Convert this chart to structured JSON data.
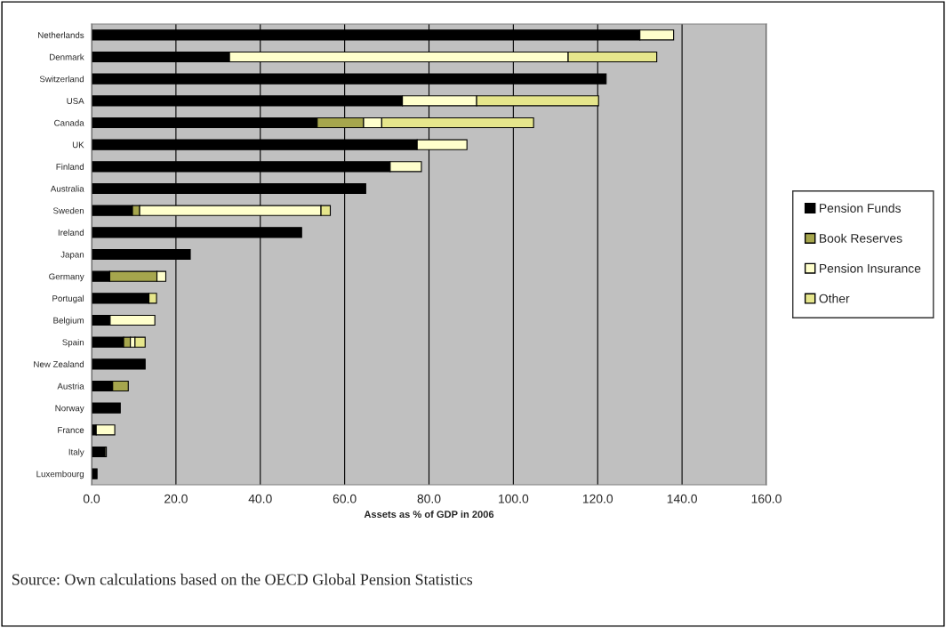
{
  "chart_data": {
    "type": "bar",
    "orientation": "horizontal",
    "stacked": true,
    "categories": [
      "Netherlands",
      "Denmark",
      "Switzerland",
      "USA",
      "Canada",
      "UK",
      "Finland",
      "Australia",
      "Sweden",
      "Ireland",
      "Japan",
      "Germany",
      "Portugal",
      "Belgium",
      "Spain",
      "New Zealand",
      "Austria",
      "Norway",
      "France",
      "Italy",
      "Luxembourg"
    ],
    "series": [
      {
        "name": "Pension Funds",
        "color": "#000000",
        "values": [
          130,
          32.7,
          122,
          73.7,
          53.5,
          77.2,
          70.8,
          65.0,
          9.7,
          49.8,
          23.4,
          4.3,
          13.6,
          4.4,
          7.6,
          12.7,
          5.0,
          6.8,
          1.1,
          3.2,
          1.3
        ]
      },
      {
        "name": "Book Reserves",
        "color": "#a6a64d",
        "values": [
          null,
          null,
          null,
          null,
          11.0,
          null,
          null,
          null,
          1.7,
          null,
          null,
          11.2,
          null,
          null,
          1.6,
          null,
          3.7,
          null,
          null,
          null,
          null
        ]
      },
      {
        "name": "Pension Insurance",
        "color": "#ffffcc",
        "values": [
          8.0,
          80.3,
          null,
          17.6,
          4.3,
          11.8,
          7.4,
          null,
          43.0,
          null,
          null,
          2.1,
          null,
          10.6,
          1.1,
          null,
          null,
          null,
          4.4,
          0.3,
          null
        ]
      },
      {
        "name": "Other",
        "color": "#e6e68c",
        "values": [
          null,
          21.0,
          null,
          28.9,
          36.0,
          null,
          null,
          null,
          2.2,
          null,
          null,
          null,
          1.8,
          null,
          2.4,
          null,
          null,
          null,
          null,
          null,
          null
        ]
      }
    ],
    "xlabel": "Assets as % of GDP in 2006",
    "xlim": [
      0,
      160
    ],
    "xticks": [
      {
        "value": 0,
        "label": "0.0"
      },
      {
        "value": 20,
        "label": "20.0"
      },
      {
        "value": 40,
        "label": "40.0"
      },
      {
        "value": 60,
        "label": "60.0"
      },
      {
        "value": 80,
        "label": "80.0"
      },
      {
        "value": 100,
        "label": "100.0"
      },
      {
        "value": 120,
        "label": "120.0"
      },
      {
        "value": 140,
        "label": "140.0"
      },
      {
        "value": 160,
        "label": "160.0"
      }
    ],
    "grid": "x",
    "legend": "right",
    "annotations": [
      "Source: Own calculations based on the OECD Global Pension Statistics"
    ]
  }
}
